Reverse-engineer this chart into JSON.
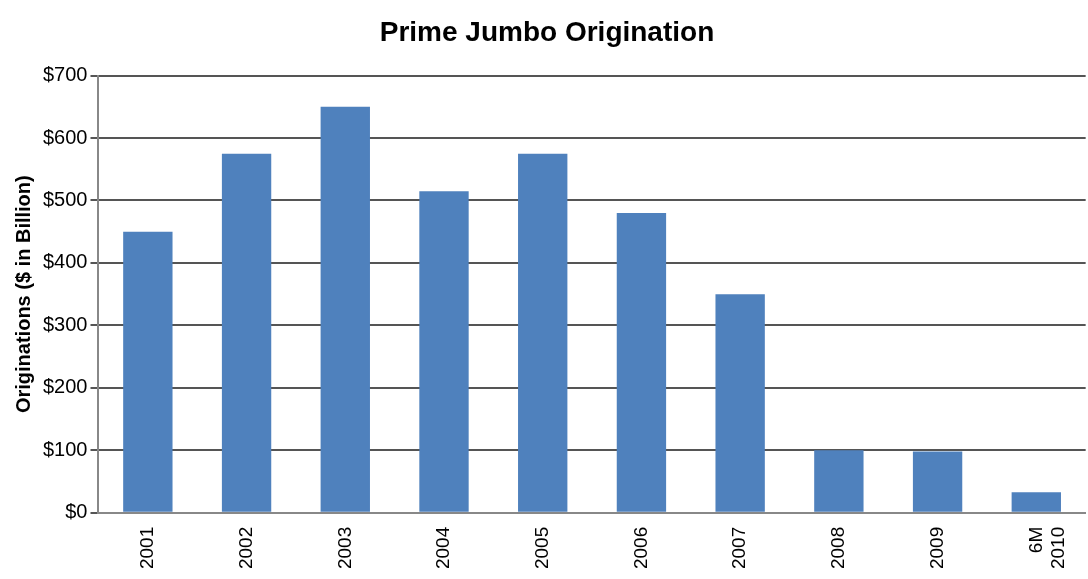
{
  "chart_data": {
    "type": "bar",
    "title": "Prime Jumbo Origination",
    "ylabel": "Originations ($ in Billion)",
    "categories": [
      "2001",
      "2002",
      "2003",
      "2004",
      "2005",
      "2006",
      "2007",
      "2008",
      "2009",
      "6M 2010"
    ],
    "values": [
      450,
      575,
      650,
      515,
      575,
      480,
      350,
      100,
      98,
      33
    ],
    "color": "#4f81bd",
    "ylim": [
      0,
      700
    ],
    "yticks": [
      {
        "value": 0,
        "label": "$0"
      },
      {
        "value": 100,
        "label": "$100"
      },
      {
        "value": 200,
        "label": "$200"
      },
      {
        "value": 300,
        "label": "$300"
      },
      {
        "value": 400,
        "label": "$400"
      },
      {
        "value": 500,
        "label": "$500"
      },
      {
        "value": 600,
        "label": "$600"
      },
      {
        "value": 700,
        "label": "$700"
      }
    ],
    "grid": "y",
    "legend": false
  }
}
